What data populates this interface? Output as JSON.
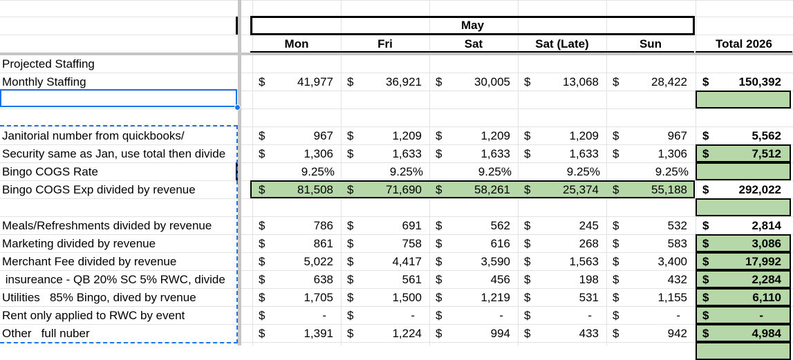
{
  "header": {
    "month": "May",
    "columns": [
      "Mon",
      "Fri",
      "Sat",
      "Sat (Late)",
      "Sun"
    ],
    "total": "Total 2026"
  },
  "rows": [
    {
      "label": "Projected Staffing",
      "values": [],
      "total": ""
    },
    {
      "label": "Monthly Staffing",
      "values": [
        "41,977",
        "36,921",
        "30,005",
        "13,068",
        "28,422"
      ],
      "total": "150,392"
    },
    {
      "label": "",
      "values": [],
      "total": ""
    },
    {
      "label": "",
      "values": [],
      "total": ""
    },
    {
      "label": "Janitorial number from quickbooks/",
      "values": [
        "967",
        "1,209",
        "1,209",
        "1,209",
        "967"
      ],
      "total": "5,562"
    },
    {
      "label": "Security same as Jan, use total then divide",
      "values": [
        "1,306",
        "1,633",
        "1,633",
        "1,633",
        "1,306"
      ],
      "total": "7,512"
    },
    {
      "label": "Bingo COGS Rate",
      "values": [
        "9.25%",
        "9.25%",
        "9.25%",
        "9.25%",
        "9.25%"
      ],
      "total": ""
    },
    {
      "label": "Bingo COGS Exp divided by revenue",
      "values": [
        "81,508",
        "71,690",
        "58,261",
        "25,374",
        "55,188"
      ],
      "total": "292,022"
    },
    {
      "label": "",
      "values": [],
      "total": ""
    },
    {
      "label": "Meals/Refreshments divided by revenue",
      "values": [
        "786",
        "691",
        "562",
        "245",
        "532"
      ],
      "total": "2,814"
    },
    {
      "label": "Marketing divided by revenue",
      "values": [
        "861",
        "758",
        "616",
        "268",
        "583"
      ],
      "total": "3,086"
    },
    {
      "label": "Merchant Fee divided by revenue",
      "values": [
        "5,022",
        "4,417",
        "3,590",
        "1,563",
        "3,400"
      ],
      "total": "17,992"
    },
    {
      "label": " insureance - QB 20% SC 5% RWC, divide",
      "values": [
        "638",
        "561",
        "456",
        "198",
        "432"
      ],
      "total": "2,284"
    },
    {
      "label": "Utilities   85% Bingo, dived by rvenue",
      "values": [
        "1,705",
        "1,500",
        "1,219",
        "531",
        "1,155"
      ],
      "total": "6,110"
    },
    {
      "label": "Rent only applied to RWC by event",
      "values": [
        "-",
        "-",
        "-",
        "-",
        "-"
      ],
      "total": "-"
    },
    {
      "label": "Other   full nuber",
      "values": [
        "1,391",
        "1,224",
        "994",
        "433",
        "942"
      ],
      "total": "4,984"
    }
  ],
  "currency_symbol": "$",
  "colors": {
    "green": "#b6d7a8",
    "selection": "#1a73e8",
    "grid": "#e2e2e2",
    "freeze": "#c6c6c6"
  }
}
